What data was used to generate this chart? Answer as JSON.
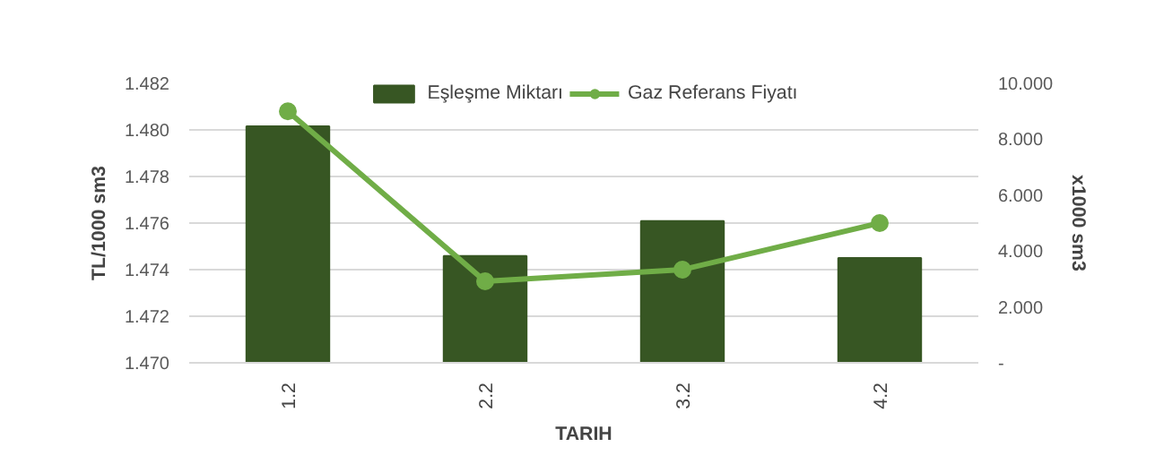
{
  "chart_data": {
    "type": "bar",
    "xlabel": "TARIH",
    "ylabel": "TL/1000 sm3",
    "y2label": "x1000 sm3",
    "categories": [
      "1.2",
      "2.2",
      "3.2",
      "4.2"
    ],
    "series": [
      {
        "name": "Eşleşme Miktarı",
        "axis": "y2",
        "color": "#375623",
        "values": [
          8.46,
          3.82,
          5.07,
          3.75
        ]
      },
      {
        "name": "Gaz Referans Fiyatı",
        "type": "line",
        "axis": "y",
        "color": "#70ad47",
        "marker": "circle",
        "values": [
          1.4808,
          1.4735,
          1.474,
          1.476
        ]
      }
    ],
    "ylim": [
      1.47,
      1.482
    ],
    "yticks": [
      {
        "value": 1.47,
        "label": "1.470"
      },
      {
        "value": 1.472,
        "label": "1.472"
      },
      {
        "value": 1.474,
        "label": "1.474"
      },
      {
        "value": 1.476,
        "label": "1.476"
      },
      {
        "value": 1.478,
        "label": "1.478"
      },
      {
        "value": 1.48,
        "label": "1.480"
      },
      {
        "value": 1.482,
        "label": "1.482"
      }
    ],
    "y2lim": [
      0,
      10
    ],
    "y2ticks": [
      {
        "value": 0,
        "label": "-"
      },
      {
        "value": 2,
        "label": "2.000"
      },
      {
        "value": 4,
        "label": "4.000"
      },
      {
        "value": 6,
        "label": "6.000"
      },
      {
        "value": 8,
        "label": "8.000"
      },
      {
        "value": 10,
        "label": "10.000"
      }
    ],
    "grid": "y",
    "legend": "top"
  }
}
